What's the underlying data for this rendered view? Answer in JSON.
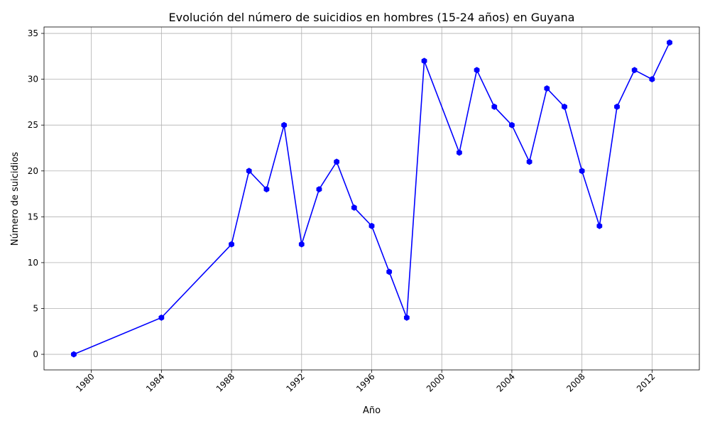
{
  "chart_data": {
    "type": "line",
    "title": "Evolución del número de suicidios en hombres (15-24 años) en Guyana",
    "xlabel": "Año",
    "ylabel": "Número de suicidios",
    "x": [
      1979,
      1984,
      1988,
      1989,
      1990,
      1991,
      1992,
      1993,
      1994,
      1995,
      1996,
      1997,
      1998,
      1999,
      2001,
      2002,
      2003,
      2004,
      2005,
      2006,
      2007,
      2008,
      2009,
      2010,
      2011,
      2012,
      2013
    ],
    "series": [
      {
        "values": [
          0,
          4,
          12,
          20,
          18,
          25,
          12,
          18,
          21,
          16,
          14,
          9,
          4,
          32,
          22,
          31,
          27,
          25,
          21,
          29,
          27,
          20,
          14,
          27,
          31,
          30,
          34
        ],
        "color": "#0000ff",
        "marker": "hexagon"
      }
    ],
    "xticks": [
      "1980",
      "1984",
      "1988",
      "1992",
      "1996",
      "2000",
      "2004",
      "2008",
      "2012"
    ],
    "yticks": [
      "0",
      "5",
      "10",
      "15",
      "20",
      "25",
      "30",
      "35"
    ],
    "xlim": [
      1977.3,
      2014.7
    ],
    "ylim": [
      -1.7,
      35.7
    ],
    "grid": true,
    "xtick_rotation_deg": 45
  }
}
